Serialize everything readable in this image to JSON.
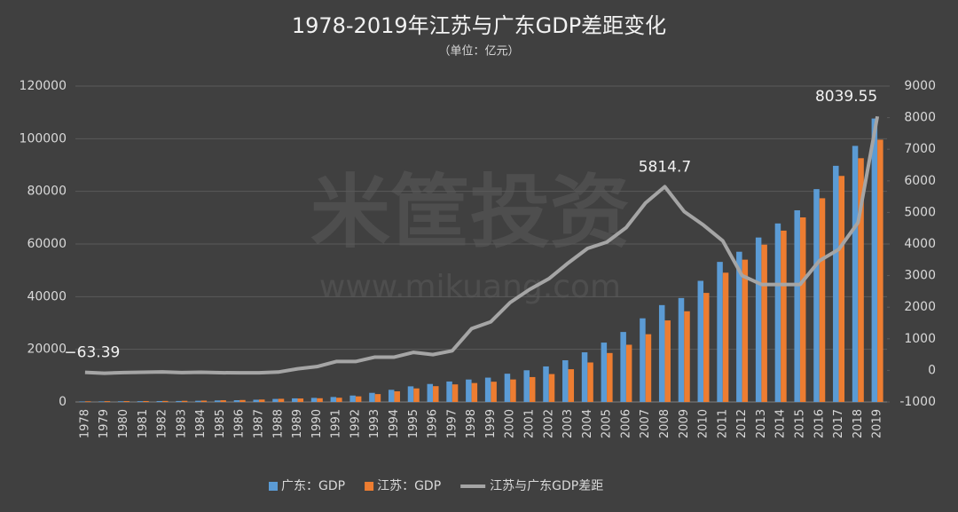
{
  "chart_data": {
    "type": "bar-line",
    "title": "1978-2019年江苏与广东GDP差距变化",
    "subtitle": "（单位：亿元）",
    "watermark": "米筐投资",
    "watermark_url": "www.mikuang.com",
    "categories": [
      "1978",
      "1979",
      "1980",
      "1981",
      "1982",
      "1983",
      "1984",
      "1985",
      "1986",
      "1987",
      "1988",
      "1989",
      "1990",
      "1991",
      "1992",
      "1993",
      "1994",
      "1995",
      "1996",
      "1997",
      "1998",
      "1999",
      "2000",
      "2001",
      "2002",
      "2003",
      "2004",
      "2005",
      "2006",
      "2007",
      "2008",
      "2009",
      "2010",
      "2011",
      "2012",
      "2013",
      "2014",
      "2015",
      "2016",
      "2017",
      "2018",
      "2019"
    ],
    "series": [
      {
        "name": "广东：GDP",
        "color": "#5b9bd5",
        "type": "bar",
        "axis": "y",
        "values": [
          186,
          209,
          250,
          290,
          340,
          369,
          459,
          577,
          668,
          847,
          1155,
          1381,
          1559,
          1893,
          2448,
          3469,
          4619,
          5933,
          6835,
          7775,
          8531,
          9251,
          10741,
          12039,
          13502,
          15845,
          18865,
          22557,
          26588,
          31777,
          36797,
          39483,
          46013,
          53210,
          57068,
          62475,
          67810,
          72813,
          80855,
          89705,
          97278,
          107671
        ]
      },
      {
        "name": "江苏：GDP",
        "color": "#ed7d31",
        "type": "bar",
        "axis": "y",
        "values": [
          249,
          299,
          320,
          350,
          390,
          438,
          519,
          652,
          745,
          922,
          1209,
          1322,
          1417,
          1601,
          2136,
          2998,
          4057,
          5155,
          6004,
          6680,
          7200,
          7698,
          8554,
          9457,
          10607,
          12443,
          15004,
          18599,
          21742,
          25741,
          30982,
          34457,
          41425,
          49110,
          54058,
          59753,
          65088,
          70116,
          77388,
          85870,
          92595,
          99632
        ]
      },
      {
        "name": "江苏与广东GDP差距",
        "color": "#a5a5a5",
        "type": "line",
        "axis": "y2",
        "values": [
          -63.39,
          -89,
          -70,
          -60,
          -50,
          -69,
          -60,
          -74,
          -77,
          -76,
          -53,
          50,
          120,
          280,
          280,
          420,
          420,
          570,
          500,
          620,
          1320,
          1540,
          2150,
          2560,
          2900,
          3400,
          3860,
          4060,
          4520,
          5300,
          5814.7,
          5030,
          4600,
          4100,
          3000,
          2720,
          2720,
          2720,
          3470,
          3830,
          4680,
          8039.55
        ],
        "value_labels": [
          "−63.39",
          null,
          null,
          null,
          null,
          null,
          null,
          null,
          null,
          null,
          null,
          null,
          null,
          null,
          null,
          null,
          null,
          null,
          null,
          null,
          null,
          null,
          null,
          null,
          null,
          null,
          null,
          null,
          null,
          null,
          "5814.7",
          null,
          null,
          null,
          null,
          null,
          null,
          null,
          null,
          null,
          null,
          "8039.55"
        ]
      }
    ],
    "ylim": [
      0,
      120000
    ],
    "yticks": [
      0,
      20000,
      40000,
      60000,
      80000,
      100000,
      120000
    ],
    "y2lim": [
      -1000,
      9000
    ],
    "y2ticks": [
      -1000,
      0,
      1000,
      2000,
      3000,
      4000,
      5000,
      6000,
      7000,
      8000,
      9000
    ],
    "grid": true,
    "legend": "bottom"
  }
}
